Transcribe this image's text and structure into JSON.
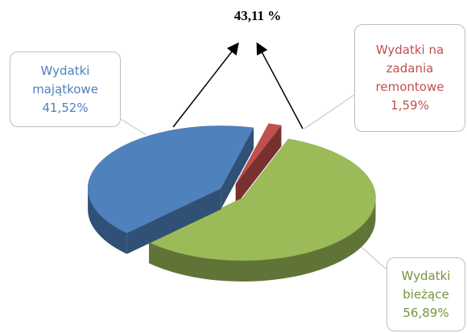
{
  "chart_data": {
    "type": "pie",
    "annotation": "43,11 %",
    "categories": [
      "Wydatki na zadania remontowe",
      "Wydatki bieżące",
      "Wydatki majątkowe"
    ],
    "values": [
      1.59,
      56.89,
      41.52
    ],
    "value_labels": [
      "1,59%",
      "56,89%",
      "41,52%"
    ],
    "colors": [
      "#c0504d",
      "#9bbb59",
      "#4f81bd"
    ]
  }
}
